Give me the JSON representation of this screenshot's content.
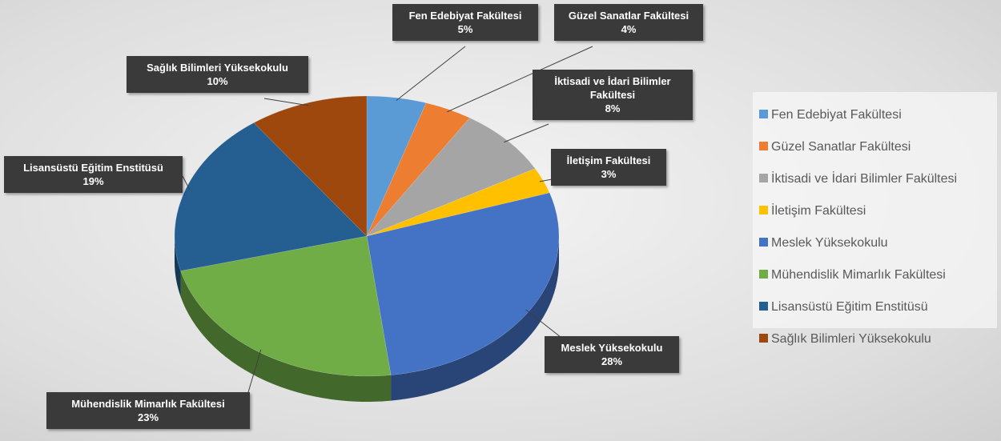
{
  "chart_data": {
    "type": "pie",
    "categories": [
      "Fen Edebiyat Fakültesi",
      "Güzel Sanatlar Fakültesi",
      "İktisadi ve İdari Bilimler Fakültesi",
      "İletişim Fakültesi",
      "Meslek Yüksekokulu",
      "Mühendislik Mimarlık Fakültesi",
      "Lisansüstü Eğitim Enstitüsü",
      "Sağlık Bilimleri Yüksekokulu"
    ],
    "values": [
      5,
      4,
      8,
      3,
      28,
      23,
      19,
      10
    ],
    "value_labels": [
      "5%",
      "4%",
      "8%",
      "3%",
      "28%",
      "23%",
      "19%",
      "10%"
    ],
    "colors": [
      "#5b9bd5",
      "#ed7d31",
      "#a5a5a5",
      "#ffc000",
      "#4472c4",
      "#70ad47",
      "#255e91",
      "#9e480e"
    ],
    "legend": "right"
  }
}
